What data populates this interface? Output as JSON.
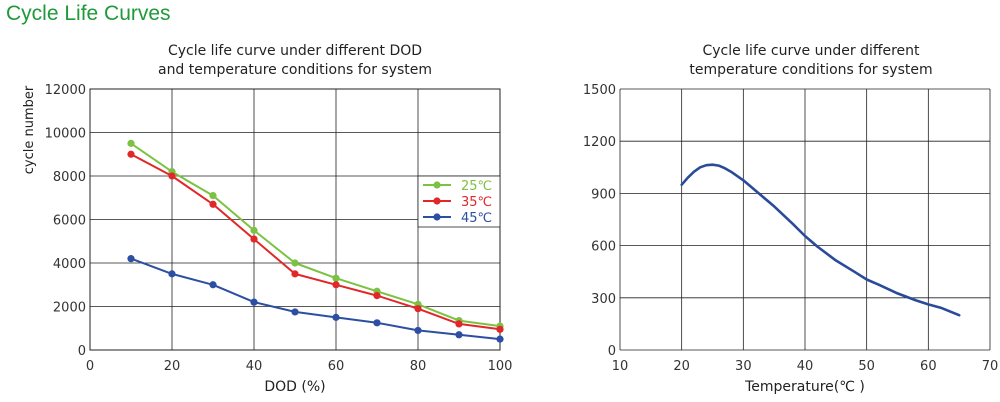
{
  "page": {
    "heading": "Cycle Life Curves"
  },
  "chart_data": [
    {
      "type": "line",
      "title_lines": [
        "Cycle life curve under different DOD",
        "and temperature conditions for system"
      ],
      "xlabel": "DOD (%)",
      "ylabel": "cycle number",
      "xlim": [
        0,
        100
      ],
      "ylim": [
        0,
        12000
      ],
      "x_ticks": [
        0,
        20,
        40,
        60,
        80,
        100
      ],
      "y_ticks": [
        0,
        2000,
        4000,
        6000,
        8000,
        10000,
        12000
      ],
      "x_tick_labels": [
        "0",
        "20",
        "40",
        "60",
        "80",
        "100"
      ],
      "y_tick_labels": [
        "0",
        "2000",
        "4000",
        "6000",
        "8000",
        "10000",
        "12000"
      ],
      "grid": true,
      "legend_position": "right",
      "series": [
        {
          "name": "25℃",
          "color": "#7cc242",
          "x": [
            10,
            20,
            30,
            40,
            50,
            60,
            70,
            80,
            90,
            100
          ],
          "y": [
            9500,
            8200,
            7100,
            5500,
            4000,
            3300,
            2700,
            2100,
            1350,
            1100
          ]
        },
        {
          "name": "35℃",
          "color": "#e02828",
          "x": [
            10,
            20,
            30,
            40,
            50,
            60,
            70,
            80,
            90,
            100
          ],
          "y": [
            9000,
            8000,
            6700,
            5100,
            3500,
            3000,
            2500,
            1900,
            1200,
            950
          ]
        },
        {
          "name": "45℃",
          "color": "#2c4fa3",
          "x": [
            10,
            20,
            30,
            40,
            50,
            60,
            70,
            80,
            90,
            100
          ],
          "y": [
            4200,
            3500,
            3000,
            2200,
            1750,
            1500,
            1250,
            900,
            700,
            500
          ]
        }
      ]
    },
    {
      "type": "line",
      "title_lines": [
        "Cycle life curve under different",
        "temperature conditions for system"
      ],
      "xlabel": "Temperature(℃ )",
      "ylabel": "",
      "xlim": [
        10,
        70
      ],
      "ylim": [
        0,
        1500
      ],
      "x_ticks": [
        10,
        20,
        30,
        40,
        50,
        60,
        70
      ],
      "y_ticks": [
        0,
        300,
        600,
        900,
        1200,
        1500
      ],
      "x_tick_labels": [
        "10",
        "20",
        "30",
        "40",
        "50",
        "60",
        "70"
      ],
      "y_tick_labels": [
        "0",
        "300",
        "600",
        "900",
        "1200",
        "1500"
      ],
      "grid": true,
      "series": [
        {
          "color": "#2a4a9a",
          "x": [
            20,
            21,
            22,
            23,
            24,
            25,
            26,
            27,
            28,
            30,
            32,
            35,
            38,
            40,
            42,
            45,
            48,
            50,
            52,
            55,
            58,
            60,
            62,
            65
          ],
          "y": [
            950,
            990,
            1025,
            1050,
            1062,
            1065,
            1060,
            1045,
            1025,
            975,
            915,
            825,
            725,
            655,
            595,
            515,
            450,
            405,
            375,
            325,
            285,
            262,
            243,
            200
          ]
        }
      ]
    }
  ]
}
